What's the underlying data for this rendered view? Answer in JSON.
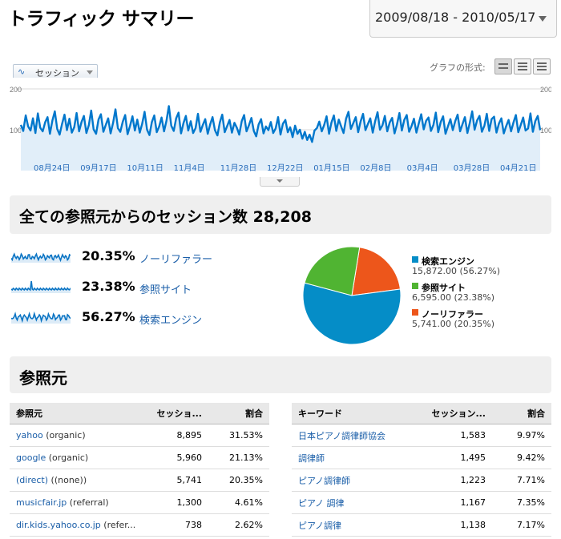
{
  "header": {
    "title": "トラフィック サマリー",
    "date_range": "2009/08/18 - 2010/05/17"
  },
  "graph_controls": {
    "metric": "セッション",
    "graph_type_label": "グラフの形式:"
  },
  "chart_data": {
    "type": "area",
    "yticks": [
      "200",
      "100"
    ],
    "ylim": [
      0,
      200
    ],
    "x_labels": [
      "08月24日",
      "09月17日",
      "10月11日",
      "11月4日",
      "11月28日",
      "12月22日",
      "01月15日",
      "02月8日",
      "03月4日",
      "03月28日",
      "04月21日"
    ],
    "series": [
      {
        "values": [
          112,
          97,
          135,
          108,
          98,
          128,
          92,
          140,
          105,
          96,
          118,
          131,
          90,
          123,
          145,
          102,
          88,
          115,
          137,
          99,
          127,
          93,
          106,
          141,
          96,
          119,
          134,
          92,
          111,
          147,
          101,
          90,
          125,
          138,
          95,
          112,
          128,
          91,
          117,
          150,
          104,
          95,
          120,
          136,
          89,
          110,
          133,
          98,
          125,
          93,
          115,
          144,
          100,
          87,
          119,
          135,
          94,
          108,
          130,
          96,
          122,
          158,
          110,
          97,
          128,
          142,
          91,
          116,
          134,
          98,
          121,
          92,
          104,
          139,
          95,
          112,
          126,
          90,
          113,
          131,
          99,
          86,
          118,
          137,
          94,
          109,
          124,
          93,
          117,
          105,
          88,
          121,
          136,
          96,
          111,
          129,
          97,
          84,
          113,
          126,
          91,
          108,
          99,
          119,
          92,
          103,
          131,
          88,
          115,
          124,
          94,
          106,
          82,
          110,
          90,
          100,
          78,
          95,
          75,
          88,
          70,
          98,
          104,
          120,
          96,
          112,
          133,
          90,
          118,
          135,
          97,
          125,
          108,
          92,
          127,
          144,
          102,
          116,
          131,
          94,
          120,
          139,
          99,
          114,
          128,
          93,
          121,
          143,
          100,
          111,
          134,
          96,
          118,
          129,
          91,
          113,
          141,
          98,
          124,
          136,
          95,
          109,
          127,
          93,
          116,
          138,
          101,
          122,
          130,
          97,
          112,
          142,
          94,
          119,
          133,
          90,
          108,
          126,
          99,
          121,
          137,
          96,
          114,
          131,
          92,
          117,
          145,
          100,
          123,
          134,
          95,
          110,
          139,
          97,
          126,
          132,
          93,
          115,
          128,
          91,
          109,
          124,
          96,
          118,
          136,
          94,
          112,
          130,
          98,
          103,
          140,
          95,
          121,
          134,
          99
        ]
      }
    ]
  },
  "summary": {
    "heading": "全ての参照元からのセッション数 28,208",
    "rows": [
      {
        "pct": "20.35%",
        "label": "ノーリファラー"
      },
      {
        "pct": "23.38%",
        "label": "参照サイト"
      },
      {
        "pct": "56.27%",
        "label": "検索エンジン"
      }
    ],
    "pie": [
      {
        "name": "検索エンジン",
        "value": "15,872.00 (56.27%)",
        "fraction": 0.5627,
        "color": "#058dc7"
      },
      {
        "name": "参照サイト",
        "value": "6,595.00 (23.38%)",
        "fraction": 0.2338,
        "color": "#50b432"
      },
      {
        "name": "ノーリファラー",
        "value": "5,741.00 (20.35%)",
        "fraction": 0.2035,
        "color": "#ed561b"
      }
    ]
  },
  "referrers": {
    "heading": "参照元",
    "table_left": {
      "headers": [
        "参照元",
        "セッショ...",
        "割合"
      ],
      "rows": [
        {
          "source": "yahoo",
          "medium": "(organic)",
          "sessions": "8,895",
          "share": "31.53%"
        },
        {
          "source": "google",
          "medium": "(organic)",
          "sessions": "5,960",
          "share": "21.13%"
        },
        {
          "source": "(direct)",
          "medium": "((none))",
          "sessions": "5,741",
          "share": "20.35%"
        },
        {
          "source": "musicfair.jp",
          "medium": "(referral)",
          "sessions": "1,300",
          "share": "4.61%"
        },
        {
          "source": "dir.kids.yahoo.co.jp",
          "medium": "(refer...",
          "sessions": "738",
          "share": "2.62%"
        }
      ]
    },
    "table_right": {
      "headers": [
        "キーワード",
        "セッション...",
        "割合"
      ],
      "rows": [
        {
          "keyword": "日本ピアノ調律師協会",
          "sessions": "1,583",
          "share": "9.97%"
        },
        {
          "keyword": "調律師",
          "sessions": "1,495",
          "share": "9.42%"
        },
        {
          "keyword": "ピアノ調律師",
          "sessions": "1,223",
          "share": "7.71%"
        },
        {
          "keyword": "ピアノ 調律",
          "sessions": "1,167",
          "share": "7.35%"
        },
        {
          "keyword": "ピアノ調律",
          "sessions": "1,138",
          "share": "7.17%"
        }
      ]
    }
  }
}
